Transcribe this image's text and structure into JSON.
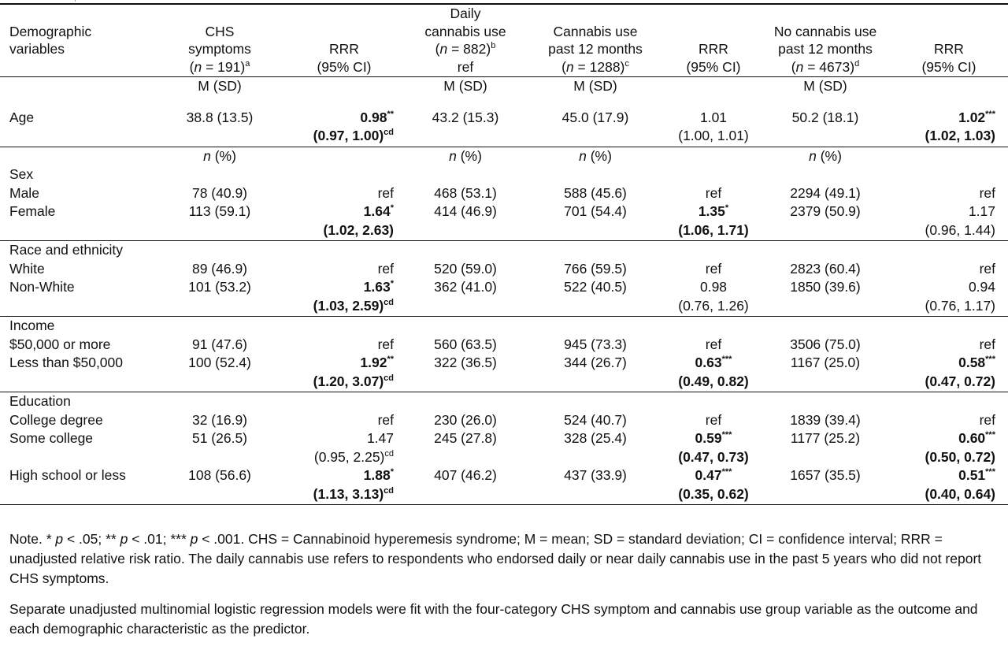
{
  "header": {
    "demographic": [
      "Demographic",
      "variables"
    ],
    "chs": {
      "line1": "CHS",
      "line2": "symptoms",
      "n_pre": "(",
      "n_ital": "n",
      "n_post": " = 191)",
      "sup": "a"
    },
    "rrr1": {
      "line1": "RRR",
      "line2": "(95% CI)"
    },
    "daily": {
      "line1": "Daily",
      "line2": "cannabis use",
      "n_pre": "(",
      "n_ital": "n",
      "n_post": " = 882)",
      "sup": "b",
      "line4": "ref"
    },
    "past12": {
      "line1": "Cannabis use",
      "line2": "past 12 months",
      "n_pre": "(",
      "n_ital": "n",
      "n_post": " = 1288)",
      "sup": "c"
    },
    "rrr2": {
      "line1": "RRR",
      "line2": "(95% CI)"
    },
    "nocann": {
      "line1": "No cannabis use",
      "line2": "past 12 months",
      "n_pre": "(",
      "n_ital": "n",
      "n_post": " = 4673)",
      "sup": "d"
    },
    "rrr3": {
      "line1": "RRR",
      "line2": "(95% CI)"
    }
  },
  "units": {
    "msd": "M (SD)",
    "n_ital": "n",
    "n_post": " (%)"
  },
  "age": {
    "label": "Age",
    "chs": "38.8 (13.5)",
    "rrr1": "0.98",
    "rrr1_stars": "**",
    "rrr1_ci": "(0.97, 1.00)",
    "rrr1_sup": "cd",
    "daily": "43.2 (15.3)",
    "past12": "45.0 (17.9)",
    "rrr2": "1.01",
    "rrr2_ci": "(1.00, 1.01)",
    "nocann": "50.2 (18.1)",
    "rrr3": "1.02",
    "rrr3_stars": "***",
    "rrr3_ci": "(1.02, 1.03)"
  },
  "sex": {
    "label": "Sex",
    "male": {
      "label": "Male",
      "chs": "78 (40.9)",
      "rrr1": "ref",
      "daily": "468 (53.1)",
      "past12": "588 (45.6)",
      "rrr2": "ref",
      "nocann": "2294 (49.1)",
      "rrr3": "ref"
    },
    "female": {
      "label": "Female",
      "chs": "113 (59.1)",
      "rrr1": "1.64",
      "rrr1_stars": "*",
      "rrr1_ci": "(1.02, 2.63)",
      "daily": "414 (46.9)",
      "past12": "701 (54.4)",
      "rrr2": "1.35",
      "rrr2_stars": "*",
      "rrr2_ci": "(1.06, 1.71)",
      "nocann": "2379 (50.9)",
      "rrr3": "1.17",
      "rrr3_ci": "(0.96, 1.44)"
    }
  },
  "race": {
    "label": "Race and ethnicity",
    "white": {
      "label": "White",
      "chs": "89 (46.9)",
      "rrr1": "ref",
      "daily": "520 (59.0)",
      "past12": "766 (59.5)",
      "rrr2": "ref",
      "nocann": "2823 (60.4)",
      "rrr3": "ref"
    },
    "nonwhite": {
      "label": "Non-White",
      "chs": "101 (53.2)",
      "rrr1": "1.63",
      "rrr1_stars": "*",
      "rrr1_ci": "(1.03, 2.59)",
      "rrr1_sup": "cd",
      "daily": "362 (41.0)",
      "past12": "522 (40.5)",
      "rrr2": "0.98",
      "rrr2_ci": "(0.76, 1.26)",
      "nocann": "1850 (39.6)",
      "rrr3": "0.94",
      "rrr3_ci": "(0.76, 1.17)"
    }
  },
  "income": {
    "label": "Income",
    "high": {
      "label": "$50,000 or more",
      "chs": "91 (47.6)",
      "rrr1": "ref",
      "daily": "560 (63.5)",
      "past12": "945 (73.3)",
      "rrr2": "ref",
      "nocann": "3506 (75.0)",
      "rrr3": "ref"
    },
    "low": {
      "label": "Less than $50,000",
      "chs": "100 (52.4)",
      "rrr1": "1.92",
      "rrr1_stars": "**",
      "rrr1_ci": "(1.20, 3.07)",
      "rrr1_sup": "cd",
      "daily": "322 (36.5)",
      "past12": "344 (26.7)",
      "rrr2": "0.63",
      "rrr2_stars": "***",
      "rrr2_ci": "(0.49, 0.82)",
      "nocann": "1167 (25.0)",
      "rrr3": "0.58",
      "rrr3_stars": "***",
      "rrr3_ci": "(0.47, 0.72)"
    }
  },
  "education": {
    "label": "Education",
    "college": {
      "label": "College degree",
      "chs": "32 (16.9)",
      "rrr1": "ref",
      "daily": "230 (26.0)",
      "past12": "524 (40.7)",
      "rrr2": "ref",
      "nocann": "1839 (39.4)",
      "rrr3": "ref"
    },
    "some": {
      "label": "Some college",
      "chs": "51 (26.5)",
      "rrr1": "1.47",
      "rrr1_ci": "(0.95, 2.25)",
      "rrr1_sup": "cd",
      "daily": "245 (27.8)",
      "past12": "328 (25.4)",
      "rrr2": "0.59",
      "rrr2_stars": "***",
      "rrr2_ci": "(0.47, 0.73)",
      "nocann": "1177 (25.2)",
      "rrr3": "0.60",
      "rrr3_stars": "***",
      "rrr3_ci": "(0.50, 0.72)"
    },
    "hs": {
      "label": "High school or less",
      "chs": "108 (56.6)",
      "rrr1": "1.88",
      "rrr1_stars": "*",
      "rrr1_ci": "(1.13, 3.13)",
      "rrr1_sup": "cd",
      "daily": "407 (46.2)",
      "past12": "437 (33.9)",
      "rrr2": "0.47",
      "rrr2_stars": "***",
      "rrr2_ci": "(0.35, 0.62)",
      "nocann": "1657 (35.5)",
      "rrr3": "0.51",
      "rrr3_stars": "***",
      "rrr3_ci": "(0.40, 0.64)"
    }
  },
  "notes": {
    "n1_pre": "Note. * ",
    "p": "p",
    "n1_a": " < .05; ** ",
    "n1_b": " < .01; *** ",
    "n1_rest": " < .001. CHS = Cannabinoid hyperemesis syndrome; M = mean; SD = standard deviation; CI = confidence interval; RRR = unadjusted relative risk ratio. The daily cannabis use refers to respondents who endorsed daily or near daily cannabis use in the past 5 years who did not report CHS symptoms.",
    "n2": "Separate unadjusted multinomial logistic regression models were fit with the four-category CHS symptom and cannabis use group variable as the outcome and each demographic characteristic as the predictor."
  }
}
